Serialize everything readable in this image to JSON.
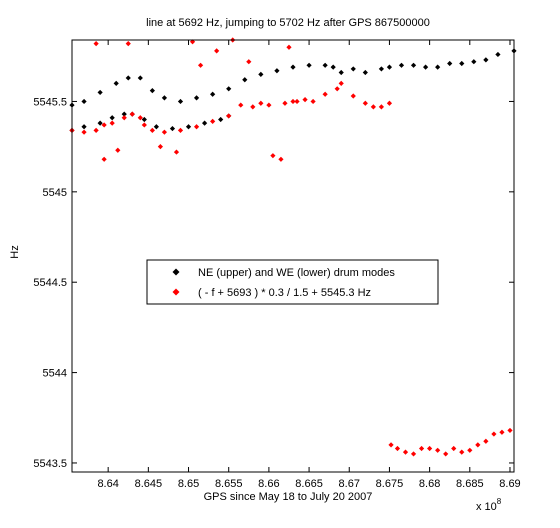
{
  "chart_data": {
    "type": "scatter",
    "title": "line at 5692 Hz, jumping to 5702 Hz after GPS 867500000",
    "xlabel": "GPS since May 18 to July 20 2007",
    "ylabel": "Hz",
    "x_multiplier_label": "x 10",
    "x_multiplier_exponent": "8",
    "xlim": [
      8.6355,
      8.6905
    ],
    "ylim": [
      5543.45,
      5545.84
    ],
    "x_ticks": [
      8.64,
      8.645,
      8.65,
      8.655,
      8.66,
      8.665,
      8.67,
      8.675,
      8.68,
      8.685,
      8.69
    ],
    "x_tick_labels": [
      "8.64",
      "8.645",
      "8.65",
      "8.655",
      "8.66",
      "8.665",
      "8.67",
      "8.675",
      "8.68",
      "8.685",
      "8.69"
    ],
    "y_ticks": [
      5543.5,
      5544,
      5544.5,
      5545,
      5545.5
    ],
    "y_tick_labels": [
      "5543.5",
      "5544",
      "5544.5",
      "5545",
      "5545.5"
    ],
    "grid": false,
    "legend_position": "center",
    "series": [
      {
        "name": "NE (upper) and WE (lower) drum modes",
        "color": "#000000",
        "marker": "diamond",
        "x": [
          8.6355,
          8.637,
          8.639,
          8.641,
          8.6425,
          8.644,
          8.6455,
          8.647,
          8.649,
          8.651,
          8.653,
          8.655,
          8.657,
          8.659,
          8.661,
          8.663,
          8.665,
          8.667,
          8.668,
          8.669,
          8.6705,
          8.672,
          8.674,
          8.675,
          8.6765,
          8.678,
          8.6795,
          8.681,
          8.6825,
          8.684,
          8.6855,
          8.687,
          8.6885,
          8.6905,
          8.6355,
          8.637,
          8.639,
          8.6405,
          8.642,
          8.643,
          8.6445,
          8.646,
          8.648,
          8.65,
          8.652,
          8.654,
          8.655
        ],
        "y": [
          5545.48,
          5545.5,
          5545.55,
          5545.6,
          5545.63,
          5545.63,
          5545.56,
          5545.52,
          5545.5,
          5545.52,
          5545.54,
          5545.57,
          5545.62,
          5545.65,
          5545.67,
          5545.69,
          5545.7,
          5545.7,
          5545.69,
          5545.66,
          5545.68,
          5545.66,
          5545.68,
          5545.69,
          5545.7,
          5545.7,
          5545.69,
          5545.69,
          5545.71,
          5545.71,
          5545.72,
          5545.73,
          5545.76,
          5545.78,
          5545.34,
          5545.36,
          5545.38,
          5545.41,
          5545.43,
          5545.43,
          5545.4,
          5545.36,
          5545.35,
          5545.36,
          5545.38,
          5545.4,
          5545.42
        ]
      },
      {
        "name": "( - f + 5693 ) * 0.3 / 1.5 + 5545.3 Hz",
        "color": "#ff0000",
        "marker": "diamond",
        "x": [
          8.6355,
          8.637,
          8.6385,
          8.6395,
          8.6405,
          8.642,
          8.643,
          8.644,
          8.6445,
          8.6455,
          8.647,
          8.649,
          8.651,
          8.653,
          8.655,
          8.6565,
          8.658,
          8.659,
          8.66,
          8.662,
          8.663,
          8.6635,
          8.6645,
          8.6655,
          8.667,
          8.6685,
          8.669,
          8.6705,
          8.672,
          8.673,
          8.674,
          8.675,
          8.6752,
          8.676,
          8.677,
          8.678,
          8.679,
          8.68,
          8.681,
          8.682,
          8.683,
          8.684,
          8.685,
          8.686,
          8.687,
          8.688,
          8.689,
          8.69,
          8.6385,
          8.6425,
          8.6505,
          8.6515,
          8.6535,
          8.6555,
          8.6575,
          8.6625,
          8.6465,
          8.6485,
          8.6605,
          8.6615,
          8.6395,
          8.6412
        ],
        "y": [
          5545.34,
          5545.33,
          5545.34,
          5545.37,
          5545.38,
          5545.41,
          5545.43,
          5545.41,
          5545.37,
          5545.34,
          5545.33,
          5545.34,
          5545.36,
          5545.39,
          5545.42,
          5545.48,
          5545.47,
          5545.49,
          5545.48,
          5545.49,
          5545.5,
          5545.5,
          5545.51,
          5545.5,
          5545.54,
          5545.57,
          5545.6,
          5545.53,
          5545.49,
          5545.47,
          5545.47,
          5545.49,
          5543.6,
          5543.58,
          5543.56,
          5543.55,
          5543.58,
          5543.58,
          5543.57,
          5543.55,
          5543.58,
          5543.56,
          5543.57,
          5543.6,
          5543.62,
          5543.66,
          5543.67,
          5543.68,
          5545.82,
          5545.82,
          5545.83,
          5545.7,
          5545.78,
          5545.84,
          5545.72,
          5545.8,
          5545.25,
          5545.22,
          5545.2,
          5545.18,
          5545.18,
          5545.23
        ]
      }
    ]
  }
}
